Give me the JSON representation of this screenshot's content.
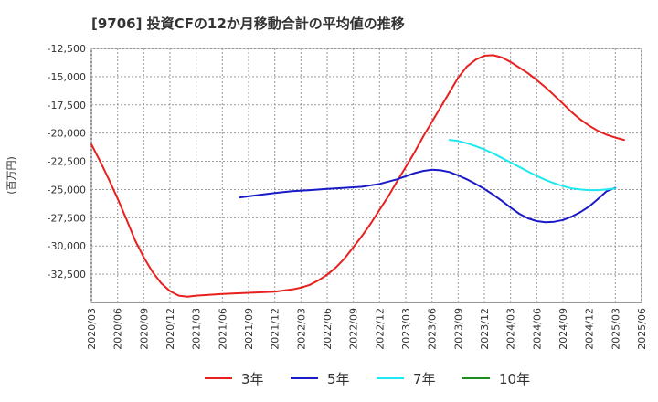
{
  "chart_data": {
    "type": "line",
    "title": "[9706]  投資CFの12か月移動合計の平均値の推移",
    "ylabel": "(百万円)",
    "xlabel": "",
    "ylim": [
      -35000,
      -12500
    ],
    "yticks": [
      -12500,
      -15000,
      -17500,
      -20000,
      -22500,
      -25000,
      -27500,
      -30000,
      -32500
    ],
    "ytick_labels": [
      "-12,500",
      "-15,000",
      "-17,500",
      "-20,000",
      "-22,500",
      "-25,000",
      "-27,500",
      "-30,000",
      "-32,500"
    ],
    "xticks": [
      "2020/03",
      "2020/06",
      "2020/09",
      "2020/12",
      "2021/03",
      "2021/06",
      "2021/09",
      "2021/12",
      "2022/03",
      "2022/06",
      "2022/09",
      "2022/12",
      "2023/03",
      "2023/06",
      "2023/09",
      "2023/12",
      "2024/03",
      "2024/06",
      "2024/09",
      "2024/12",
      "2025/03",
      "2025/06"
    ],
    "grid": true,
    "legend_position": "bottom",
    "series": [
      {
        "name": "3年",
        "color": "#e8201e",
        "points": [
          [
            "2020/03",
            -21000
          ],
          [
            "2020/04",
            -22500
          ],
          [
            "2020/05",
            -24100
          ],
          [
            "2020/06",
            -25800
          ],
          [
            "2020/07",
            -27600
          ],
          [
            "2020/08",
            -29500
          ],
          [
            "2020/09",
            -31000
          ],
          [
            "2020/10",
            -32300
          ],
          [
            "2020/11",
            -33300
          ],
          [
            "2020/12",
            -34000
          ],
          [
            "2021/01",
            -34400
          ],
          [
            "2021/02",
            -34500
          ],
          [
            "2021/03",
            -34400
          ],
          [
            "2021/06",
            -34250
          ],
          [
            "2021/09",
            -34150
          ],
          [
            "2021/12",
            -34050
          ],
          [
            "2022/01",
            -33950
          ],
          [
            "2022/02",
            -33850
          ],
          [
            "2022/03",
            -33700
          ],
          [
            "2022/04",
            -33450
          ],
          [
            "2022/05",
            -33050
          ],
          [
            "2022/06",
            -32550
          ],
          [
            "2022/07",
            -31900
          ],
          [
            "2022/08",
            -31100
          ],
          [
            "2022/09",
            -30100
          ],
          [
            "2022/10",
            -29100
          ],
          [
            "2022/11",
            -28000
          ],
          [
            "2022/12",
            -26800
          ],
          [
            "2023/01",
            -25600
          ],
          [
            "2023/02",
            -24300
          ],
          [
            "2023/03",
            -23000
          ],
          [
            "2023/04",
            -21700
          ],
          [
            "2023/05",
            -20300
          ],
          [
            "2023/06",
            -19000
          ],
          [
            "2023/07",
            -17700
          ],
          [
            "2023/08",
            -16400
          ],
          [
            "2023/09",
            -15100
          ],
          [
            "2023/10",
            -14100
          ],
          [
            "2023/11",
            -13500
          ],
          [
            "2023/12",
            -13150
          ],
          [
            "2024/01",
            -13100
          ],
          [
            "2024/02",
            -13300
          ],
          [
            "2024/03",
            -13700
          ],
          [
            "2024/04",
            -14200
          ],
          [
            "2024/05",
            -14700
          ],
          [
            "2024/06",
            -15300
          ],
          [
            "2024/07",
            -15950
          ],
          [
            "2024/08",
            -16650
          ],
          [
            "2024/09",
            -17400
          ],
          [
            "2024/10",
            -18150
          ],
          [
            "2024/11",
            -18800
          ],
          [
            "2024/12",
            -19350
          ],
          [
            "2025/01",
            -19800
          ],
          [
            "2025/02",
            -20150
          ],
          [
            "2025/03",
            -20400
          ],
          [
            "2025/04",
            -20600
          ]
        ]
      },
      {
        "name": "5年",
        "color": "#1a1ac8",
        "points": [
          [
            "2021/08",
            -25700
          ],
          [
            "2021/10",
            -25500
          ],
          [
            "2021/12",
            -25300
          ],
          [
            "2022/02",
            -25150
          ],
          [
            "2022/04",
            -25050
          ],
          [
            "2022/06",
            -24950
          ],
          [
            "2022/08",
            -24850
          ],
          [
            "2022/10",
            -24750
          ],
          [
            "2022/12",
            -24500
          ],
          [
            "2023/02",
            -24100
          ],
          [
            "2023/04",
            -23550
          ],
          [
            "2023/05",
            -23350
          ],
          [
            "2023/06",
            -23250
          ],
          [
            "2023/07",
            -23300
          ],
          [
            "2023/08",
            -23450
          ],
          [
            "2023/09",
            -23750
          ],
          [
            "2023/10",
            -24100
          ],
          [
            "2023/11",
            -24500
          ],
          [
            "2023/12",
            -24950
          ],
          [
            "2024/01",
            -25450
          ],
          [
            "2024/02",
            -26000
          ],
          [
            "2024/03",
            -26600
          ],
          [
            "2024/04",
            -27150
          ],
          [
            "2024/05",
            -27550
          ],
          [
            "2024/06",
            -27800
          ],
          [
            "2024/07",
            -27900
          ],
          [
            "2024/08",
            -27850
          ],
          [
            "2024/09",
            -27700
          ],
          [
            "2024/10",
            -27400
          ],
          [
            "2024/11",
            -27000
          ],
          [
            "2024/12",
            -26500
          ],
          [
            "2025/01",
            -25850
          ],
          [
            "2025/02",
            -25150
          ],
          [
            "2025/03",
            -24850
          ]
        ]
      },
      {
        "name": "7年",
        "color": "#1ee8f0",
        "points": [
          [
            "2023/08",
            -20600
          ],
          [
            "2023/09",
            -20700
          ],
          [
            "2023/10",
            -20900
          ],
          [
            "2023/11",
            -21150
          ],
          [
            "2023/12",
            -21450
          ],
          [
            "2024/01",
            -21800
          ],
          [
            "2024/02",
            -22200
          ],
          [
            "2024/03",
            -22600
          ],
          [
            "2024/04",
            -23000
          ],
          [
            "2024/05",
            -23400
          ],
          [
            "2024/06",
            -23800
          ],
          [
            "2024/07",
            -24150
          ],
          [
            "2024/08",
            -24450
          ],
          [
            "2024/09",
            -24700
          ],
          [
            "2024/10",
            -24900
          ],
          [
            "2024/11",
            -25000
          ],
          [
            "2024/12",
            -25050
          ],
          [
            "2025/01",
            -25050
          ],
          [
            "2025/02",
            -25000
          ],
          [
            "2025/03",
            -24900
          ]
        ]
      },
      {
        "name": "10年",
        "color": "#1e8c1e",
        "points": []
      }
    ]
  }
}
